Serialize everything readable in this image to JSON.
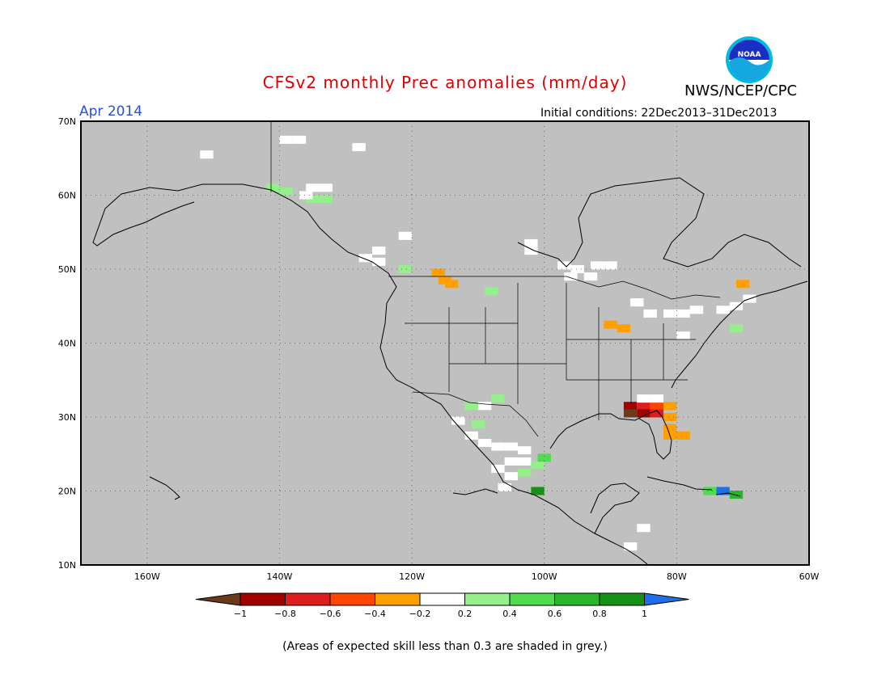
{
  "header": {
    "title": "CFSv2 monthly Prec anomalies (mm/day)",
    "agency": "NWS/NCEP/CPC",
    "logo_text": "NOAA",
    "month_label": "Apr 2014",
    "initial_conditions": "Initial conditions: 22Dec2013–31Dec2013"
  },
  "map": {
    "lon_range": [
      -170,
      -60
    ],
    "lat_range": [
      10,
      70
    ],
    "background_color": "#c0c0c0",
    "lat_labels": [
      "70N",
      "60N",
      "50N",
      "40N",
      "30N",
      "20N",
      "10N"
    ],
    "lon_labels": [
      "160W",
      "140W",
      "120W",
      "100W",
      "80W",
      "60W"
    ],
    "lat_values": [
      70,
      60,
      50,
      40,
      30,
      20,
      10
    ],
    "lon_values": [
      -160,
      -140,
      -120,
      -100,
      -80,
      -60
    ],
    "cells": [
      {
        "lon": -139,
        "lat": 67.5,
        "v": 0
      },
      {
        "lon": -137,
        "lat": 67.5,
        "v": 0
      },
      {
        "lon": -151,
        "lat": 65.5,
        "v": 0
      },
      {
        "lon": -128,
        "lat": 66.5,
        "v": 0
      },
      {
        "lon": -141,
        "lat": 61.0,
        "v": 0.3
      },
      {
        "lon": -139,
        "lat": 60.5,
        "v": 0.3
      },
      {
        "lon": -135,
        "lat": 61.0,
        "v": 0
      },
      {
        "lon": -133,
        "lat": 61.0,
        "v": 0
      },
      {
        "lon": -135,
        "lat": 59.5,
        "v": 0.3
      },
      {
        "lon": -133,
        "lat": 59.5,
        "v": 0.3
      },
      {
        "lon": -136,
        "lat": 60.0,
        "v": 0
      },
      {
        "lon": -121,
        "lat": 54.5,
        "v": 0
      },
      {
        "lon": -125,
        "lat": 52.5,
        "v": 0
      },
      {
        "lon": -127,
        "lat": 51.5,
        "v": 0
      },
      {
        "lon": -125,
        "lat": 51.0,
        "v": 0
      },
      {
        "lon": -121,
        "lat": 50.0,
        "v": 0.3
      },
      {
        "lon": -116,
        "lat": 49.5,
        "v": -0.3
      },
      {
        "lon": -115,
        "lat": 48.5,
        "v": -0.3
      },
      {
        "lon": -114,
        "lat": 48.0,
        "v": -0.3
      },
      {
        "lon": -108,
        "lat": 47.0,
        "v": 0.3
      },
      {
        "lon": -102,
        "lat": 53.5,
        "v": 0
      },
      {
        "lon": -102,
        "lat": 52.5,
        "v": 0
      },
      {
        "lon": -97,
        "lat": 50.5,
        "v": 0
      },
      {
        "lon": -95,
        "lat": 50.0,
        "v": 0
      },
      {
        "lon": -92,
        "lat": 50.5,
        "v": 0
      },
      {
        "lon": -90,
        "lat": 50.5,
        "v": 0
      },
      {
        "lon": -96,
        "lat": 49.0,
        "v": 0
      },
      {
        "lon": -93,
        "lat": 49.0,
        "v": 0
      },
      {
        "lon": -90,
        "lat": 42.5,
        "v": -0.3
      },
      {
        "lon": -88,
        "lat": 42.0,
        "v": -0.3
      },
      {
        "lon": -86,
        "lat": 45.5,
        "v": 0
      },
      {
        "lon": -84,
        "lat": 44.0,
        "v": 0
      },
      {
        "lon": -81,
        "lat": 44.0,
        "v": 0
      },
      {
        "lon": -79,
        "lat": 44.0,
        "v": 0
      },
      {
        "lon": -77,
        "lat": 44.5,
        "v": 0
      },
      {
        "lon": -73,
        "lat": 44.5,
        "v": 0
      },
      {
        "lon": -71,
        "lat": 45.0,
        "v": 0
      },
      {
        "lon": -69,
        "lat": 46.0,
        "v": 0
      },
      {
        "lon": -70,
        "lat": 48.0,
        "v": -0.3
      },
      {
        "lon": -71,
        "lat": 42.0,
        "v": 0.3
      },
      {
        "lon": -79,
        "lat": 41.0,
        "v": 0
      },
      {
        "lon": -87,
        "lat": 31.5,
        "v": -0.9
      },
      {
        "lon": -85,
        "lat": 31.5,
        "v": -0.7
      },
      {
        "lon": -83,
        "lat": 31.5,
        "v": -0.5
      },
      {
        "lon": -81,
        "lat": 31.5,
        "v": -0.3
      },
      {
        "lon": -87,
        "lat": 30.5,
        "v": -1.1
      },
      {
        "lon": -85,
        "lat": 30.5,
        "v": -0.9
      },
      {
        "lon": -83,
        "lat": 30.5,
        "v": -0.7
      },
      {
        "lon": -81,
        "lat": 30.0,
        "v": -0.3
      },
      {
        "lon": -81,
        "lat": 28.5,
        "v": -0.3
      },
      {
        "lon": -81,
        "lat": 27.5,
        "v": -0.3
      },
      {
        "lon": -79,
        "lat": 27.5,
        "v": -0.3
      },
      {
        "lon": -85,
        "lat": 32.5,
        "v": 0
      },
      {
        "lon": -83,
        "lat": 32.5,
        "v": 0
      },
      {
        "lon": -111,
        "lat": 31.5,
        "v": 0.3
      },
      {
        "lon": -109,
        "lat": 31.5,
        "v": 0
      },
      {
        "lon": -107,
        "lat": 32.5,
        "v": 0.3
      },
      {
        "lon": -113,
        "lat": 29.5,
        "v": 0
      },
      {
        "lon": -110,
        "lat": 29.0,
        "v": 0.3
      },
      {
        "lon": -111,
        "lat": 27.5,
        "v": 0
      },
      {
        "lon": -109,
        "lat": 26.5,
        "v": 0
      },
      {
        "lon": -107,
        "lat": 26.0,
        "v": 0
      },
      {
        "lon": -105,
        "lat": 26.0,
        "v": 0
      },
      {
        "lon": -103,
        "lat": 25.5,
        "v": 0
      },
      {
        "lon": -105,
        "lat": 24.0,
        "v": 0
      },
      {
        "lon": -103,
        "lat": 24.0,
        "v": 0
      },
      {
        "lon": -101,
        "lat": 23.5,
        "v": 0.3
      },
      {
        "lon": -103,
        "lat": 22.5,
        "v": 0.3
      },
      {
        "lon": -105,
        "lat": 22.0,
        "v": 0
      },
      {
        "lon": -107,
        "lat": 23.0,
        "v": 0
      },
      {
        "lon": -106,
        "lat": 20.5,
        "v": 0
      },
      {
        "lon": -101,
        "lat": 20.0,
        "v": 0.9
      },
      {
        "lon": -100,
        "lat": 24.5,
        "v": 0.5
      },
      {
        "lon": -75,
        "lat": 20.0,
        "v": 0.5
      },
      {
        "lon": -73,
        "lat": 20.0,
        "v": 1.1
      },
      {
        "lon": -71,
        "lat": 19.5,
        "v": 0.7
      },
      {
        "lon": -85,
        "lat": 15.0,
        "v": 0
      },
      {
        "lon": -87,
        "lat": 12.5,
        "v": 0
      }
    ]
  },
  "colorbar": {
    "labels": [
      "−1",
      "−0.8",
      "−0.6",
      "−0.4",
      "−0.2",
      "0.2",
      "0.4",
      "0.6",
      "0.8",
      "1"
    ],
    "colors": [
      "#6b3a1a",
      "#a00000",
      "#dd1e1e",
      "#ff4500",
      "#ff9f00",
      "#ffffff",
      "#95ef8a",
      "#4fdc4f",
      "#2ab52a",
      "#169116",
      "#1f6fe8"
    ]
  },
  "footer": {
    "note": "(Areas of expected skill less than 0.3 are shaded in grey.)"
  }
}
